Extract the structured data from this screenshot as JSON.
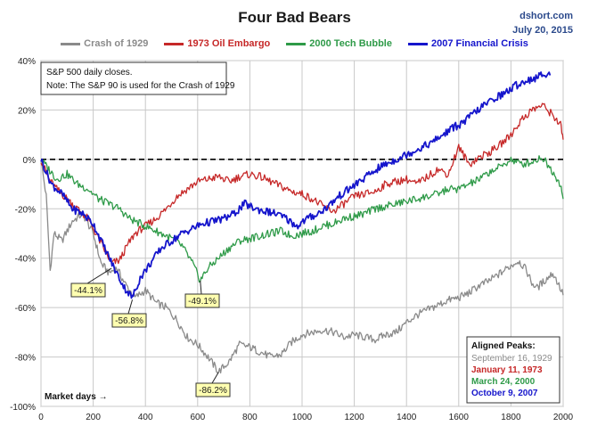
{
  "header": {
    "title": "Four Bad Bears",
    "source": "dshort.com",
    "date": "July 20, 2015"
  },
  "notes": {
    "line1": "S&P 500 daily closes.",
    "line2": "Note: The S&P 90 is used for the Crash of 1929"
  },
  "x_axis_note": "Market days →",
  "aligned_peaks": {
    "title": "Aligned Peaks:",
    "items": [
      {
        "text": "September 16, 1929",
        "color": "#8a8a8a"
      },
      {
        "text": "January 11, 1973",
        "color": "#c62828"
      },
      {
        "text": "March 24, 2000",
        "color": "#2e9a48"
      },
      {
        "text": "October 9, 2007",
        "color": "#1515cc"
      }
    ]
  },
  "chart_data": {
    "type": "line",
    "title": "Four Bad Bears",
    "xlabel": "Market days",
    "ylabel": "",
    "xlim": [
      0,
      2000
    ],
    "ylim": [
      -100,
      40
    ],
    "x_ticks": [
      0,
      200,
      400,
      600,
      800,
      1000,
      1200,
      1400,
      1600,
      1800,
      2000
    ],
    "y_ticks": [
      40,
      20,
      0,
      -20,
      -40,
      -60,
      -80,
      -100
    ],
    "y_tick_labels": [
      "40%",
      "20%",
      "0%",
      "-20%",
      "-40%",
      "-60%",
      "-80%",
      "-100%"
    ],
    "grid": true,
    "legend_position": "top",
    "series": [
      {
        "name": "Crash of 1929",
        "color": "#8a8a8a",
        "points": [
          [
            0,
            0
          ],
          [
            20,
            -15
          ],
          [
            35,
            -45
          ],
          [
            50,
            -30
          ],
          [
            80,
            -33
          ],
          [
            120,
            -25
          ],
          [
            160,
            -22
          ],
          [
            200,
            -30
          ],
          [
            230,
            -42
          ],
          [
            260,
            -46
          ],
          [
            290,
            -44
          ],
          [
            320,
            -50
          ],
          [
            360,
            -56
          ],
          [
            400,
            -53
          ],
          [
            440,
            -58
          ],
          [
            480,
            -60
          ],
          [
            520,
            -65
          ],
          [
            560,
            -72
          ],
          [
            600,
            -75
          ],
          [
            640,
            -80
          ],
          [
            680,
            -86
          ],
          [
            720,
            -82
          ],
          [
            760,
            -75
          ],
          [
            800,
            -76
          ],
          [
            840,
            -78
          ],
          [
            880,
            -80
          ],
          [
            920,
            -79
          ],
          [
            960,
            -74
          ],
          [
            1000,
            -71
          ],
          [
            1040,
            -70
          ],
          [
            1080,
            -69
          ],
          [
            1120,
            -70
          ],
          [
            1160,
            -72
          ],
          [
            1200,
            -71
          ],
          [
            1240,
            -72
          ],
          [
            1280,
            -73
          ],
          [
            1320,
            -71
          ],
          [
            1360,
            -70
          ],
          [
            1400,
            -66
          ],
          [
            1440,
            -63
          ],
          [
            1480,
            -61
          ],
          [
            1520,
            -59
          ],
          [
            1560,
            -57
          ],
          [
            1600,
            -56
          ],
          [
            1640,
            -54
          ],
          [
            1680,
            -51
          ],
          [
            1720,
            -49
          ],
          [
            1760,
            -46
          ],
          [
            1800,
            -43
          ],
          [
            1830,
            -41
          ],
          [
            1860,
            -45
          ],
          [
            1880,
            -50
          ],
          [
            1900,
            -52
          ],
          [
            1930,
            -49
          ],
          [
            1960,
            -46
          ],
          [
            1980,
            -50
          ],
          [
            2000,
            -55
          ]
        ]
      },
      {
        "name": "1973 Oil Embargo",
        "color": "#c62828",
        "points": [
          [
            0,
            0
          ],
          [
            30,
            -8
          ],
          [
            60,
            -12
          ],
          [
            100,
            -16
          ],
          [
            140,
            -20
          ],
          [
            180,
            -24
          ],
          [
            210,
            -30
          ],
          [
            240,
            -36
          ],
          [
            270,
            -42
          ],
          [
            300,
            -41
          ],
          [
            330,
            -35
          ],
          [
            360,
            -30
          ],
          [
            400,
            -27
          ],
          [
            440,
            -24
          ],
          [
            480,
            -20
          ],
          [
            520,
            -15
          ],
          [
            560,
            -12
          ],
          [
            600,
            -9
          ],
          [
            640,
            -8
          ],
          [
            680,
            -7
          ],
          [
            720,
            -9
          ],
          [
            760,
            -7
          ],
          [
            800,
            -6
          ],
          [
            840,
            -7
          ],
          [
            880,
            -9
          ],
          [
            920,
            -11
          ],
          [
            960,
            -13
          ],
          [
            1000,
            -14
          ],
          [
            1040,
            -16
          ],
          [
            1080,
            -19
          ],
          [
            1120,
            -21
          ],
          [
            1160,
            -18
          ],
          [
            1200,
            -15
          ],
          [
            1240,
            -14
          ],
          [
            1280,
            -13
          ],
          [
            1320,
            -10
          ],
          [
            1360,
            -9
          ],
          [
            1400,
            -8
          ],
          [
            1440,
            -10
          ],
          [
            1480,
            -7
          ],
          [
            1520,
            -4
          ],
          [
            1560,
            -6
          ],
          [
            1600,
            5
          ],
          [
            1640,
            -2
          ],
          [
            1680,
            1
          ],
          [
            1720,
            3
          ],
          [
            1760,
            6
          ],
          [
            1800,
            10
          ],
          [
            1840,
            16
          ],
          [
            1880,
            20
          ],
          [
            1920,
            22
          ],
          [
            1960,
            18
          ],
          [
            1990,
            14
          ],
          [
            2000,
            8
          ]
        ]
      },
      {
        "name": "2000 Tech Bubble",
        "color": "#2e9a48",
        "points": [
          [
            0,
            0
          ],
          [
            30,
            -4
          ],
          [
            60,
            -8
          ],
          [
            100,
            -6
          ],
          [
            140,
            -10
          ],
          [
            180,
            -12
          ],
          [
            220,
            -16
          ],
          [
            260,
            -18
          ],
          [
            300,
            -20
          ],
          [
            340,
            -24
          ],
          [
            380,
            -26
          ],
          [
            420,
            -28
          ],
          [
            460,
            -30
          ],
          [
            500,
            -32
          ],
          [
            540,
            -35
          ],
          [
            580,
            -42
          ],
          [
            610,
            -49
          ],
          [
            640,
            -44
          ],
          [
            680,
            -40
          ],
          [
            720,
            -36
          ],
          [
            760,
            -33
          ],
          [
            800,
            -32
          ],
          [
            840,
            -31
          ],
          [
            880,
            -30
          ],
          [
            920,
            -29
          ],
          [
            960,
            -31
          ],
          [
            1000,
            -30
          ],
          [
            1040,
            -29
          ],
          [
            1080,
            -27
          ],
          [
            1120,
            -26
          ],
          [
            1160,
            -24
          ],
          [
            1200,
            -23
          ],
          [
            1240,
            -22
          ],
          [
            1280,
            -20
          ],
          [
            1320,
            -19
          ],
          [
            1360,
            -18
          ],
          [
            1400,
            -17
          ],
          [
            1440,
            -16
          ],
          [
            1480,
            -15
          ],
          [
            1520,
            -14
          ],
          [
            1560,
            -12
          ],
          [
            1600,
            -12
          ],
          [
            1640,
            -10
          ],
          [
            1680,
            -8
          ],
          [
            1720,
            -5
          ],
          [
            1760,
            -3
          ],
          [
            1800,
            0
          ],
          [
            1840,
            -2
          ],
          [
            1880,
            -1
          ],
          [
            1920,
            1
          ],
          [
            1960,
            -5
          ],
          [
            1990,
            -10
          ],
          [
            2000,
            -16
          ]
        ]
      },
      {
        "name": "2007 Financial Crisis",
        "color": "#1515cc",
        "points": [
          [
            0,
            0
          ],
          [
            40,
            -10
          ],
          [
            80,
            -14
          ],
          [
            120,
            -20
          ],
          [
            160,
            -22
          ],
          [
            200,
            -26
          ],
          [
            240,
            -35
          ],
          [
            280,
            -44
          ],
          [
            320,
            -52
          ],
          [
            350,
            -56
          ],
          [
            380,
            -48
          ],
          [
            420,
            -42
          ],
          [
            460,
            -36
          ],
          [
            500,
            -33
          ],
          [
            540,
            -30
          ],
          [
            580,
            -28
          ],
          [
            620,
            -26
          ],
          [
            660,
            -25
          ],
          [
            700,
            -24
          ],
          [
            740,
            -22
          ],
          [
            780,
            -18
          ],
          [
            820,
            -20
          ],
          [
            860,
            -21
          ],
          [
            900,
            -22
          ],
          [
            940,
            -24
          ],
          [
            980,
            -27
          ],
          [
            1020,
            -24
          ],
          [
            1060,
            -22
          ],
          [
            1100,
            -19
          ],
          [
            1140,
            -15
          ],
          [
            1180,
            -12
          ],
          [
            1220,
            -9
          ],
          [
            1260,
            -6
          ],
          [
            1300,
            -3
          ],
          [
            1340,
            -1
          ],
          [
            1380,
            1
          ],
          [
            1420,
            3
          ],
          [
            1460,
            5
          ],
          [
            1500,
            7
          ],
          [
            1540,
            10
          ],
          [
            1580,
            13
          ],
          [
            1620,
            15
          ],
          [
            1660,
            19
          ],
          [
            1700,
            22
          ],
          [
            1740,
            25
          ],
          [
            1780,
            27
          ],
          [
            1820,
            30
          ],
          [
            1860,
            32
          ],
          [
            1900,
            33
          ],
          [
            1930,
            35
          ],
          [
            1950,
            34
          ]
        ]
      }
    ],
    "zero_line": true,
    "annotations": [
      {
        "text": "-44.1%",
        "x": 270,
        "y": -44.1,
        "color": "#1a1a1a"
      },
      {
        "text": "-56.8%",
        "x": 350,
        "y": -56.8,
        "color": "#1a1a1a"
      },
      {
        "text": "-49.1%",
        "x": 610,
        "y": -49.1,
        "color": "#1a1a1a"
      },
      {
        "text": "-86.2%",
        "x": 680,
        "y": -86.2,
        "color": "#1a1a1a"
      }
    ]
  }
}
